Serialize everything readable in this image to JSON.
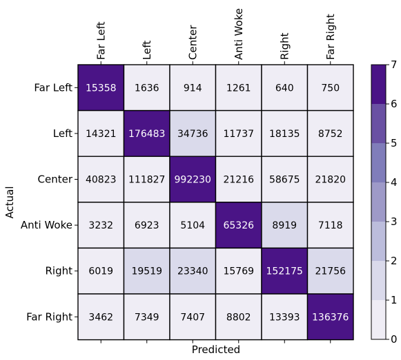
{
  "chart_data": {
    "type": "heatmap",
    "title": "",
    "xlabel": "Predicted",
    "ylabel": "Actual",
    "x_categories": [
      "Far Left",
      "Left",
      "Center",
      "Anti Woke",
      "Right",
      "Far Right"
    ],
    "y_categories": [
      "Far Left",
      "Left",
      "Center",
      "Anti Woke",
      "Right",
      "Far Right"
    ],
    "values": [
      [
        15358,
        1636,
        914,
        1261,
        640,
        750
      ],
      [
        14321,
        176483,
        34736,
        11737,
        18135,
        8752
      ],
      [
        40823,
        111827,
        992230,
        21216,
        58675,
        21820
      ],
      [
        3232,
        6923,
        5104,
        65326,
        8919,
        7118
      ],
      [
        6019,
        19519,
        23340,
        15769,
        152175,
        21756
      ],
      [
        3462,
        7349,
        7407,
        8802,
        13393,
        136376
      ]
    ],
    "color_levels": [
      0,
      1,
      2,
      3,
      4,
      5,
      6,
      7
    ],
    "cell_levels": [
      [
        6,
        0,
        0,
        0,
        0,
        0
      ],
      [
        0,
        6,
        1,
        0,
        0,
        0
      ],
      [
        0,
        0,
        6,
        0,
        0,
        0
      ],
      [
        0,
        0,
        0,
        6,
        1,
        0
      ],
      [
        0,
        1,
        1,
        0,
        6,
        1
      ],
      [
        0,
        0,
        0,
        0,
        0,
        6
      ]
    ],
    "colorbar": {
      "ticks": [
        "0",
        "1",
        "2",
        "3",
        "4",
        "5",
        "6",
        "7"
      ],
      "colors": [
        "#efedf5",
        "#dadaeb",
        "#bcbddc",
        "#9e9ac8",
        "#807dba",
        "#6a51a3",
        "#4a1486"
      ]
    },
    "grid": true
  }
}
